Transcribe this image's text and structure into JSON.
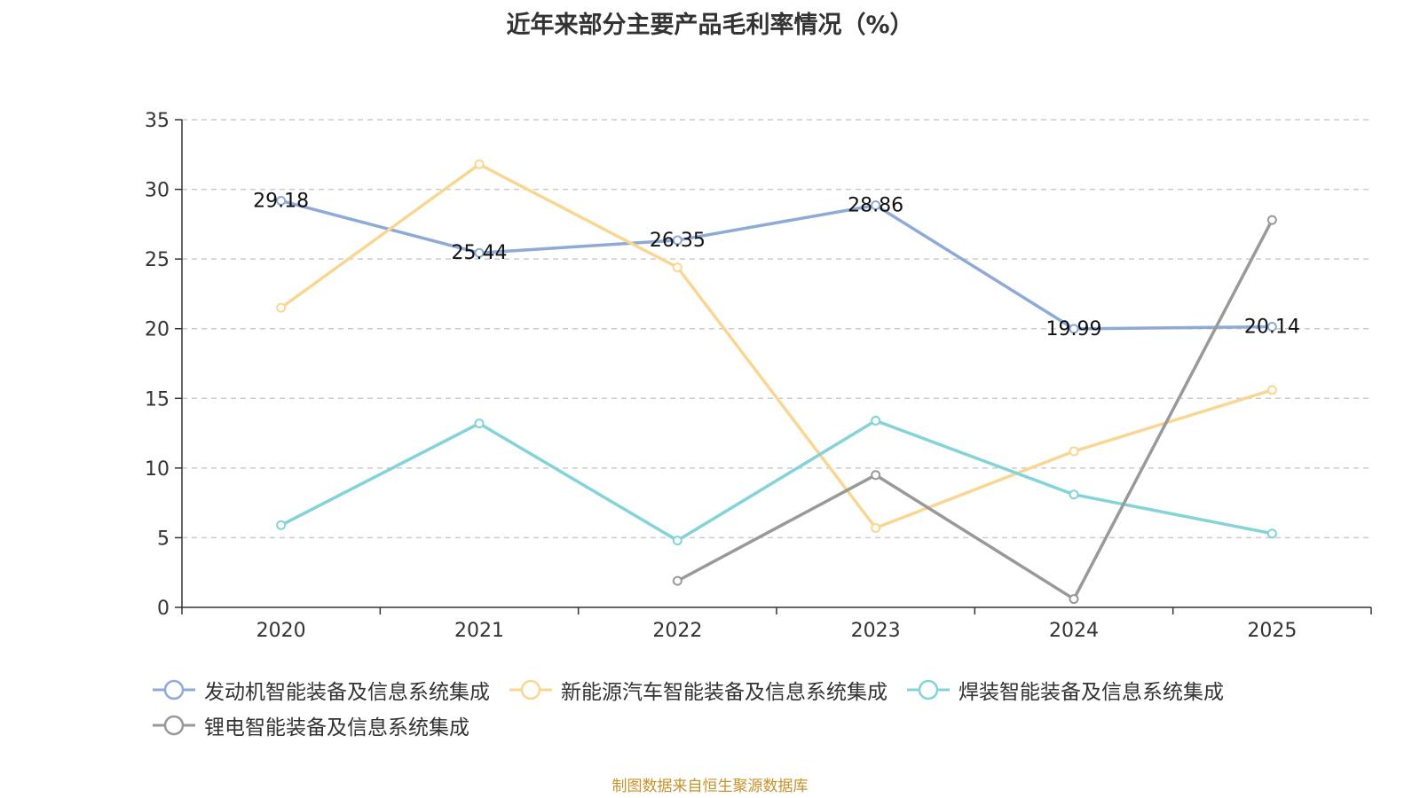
{
  "chart_data": {
    "type": "line",
    "title": "近年来部分主要产品毛利率情况（%）",
    "categories": [
      "2020",
      "2021",
      "2022",
      "2023",
      "2024",
      "2025"
    ],
    "ylim": [
      0,
      35
    ],
    "yticks": [
      0,
      5,
      10,
      15,
      20,
      25,
      30,
      35
    ],
    "grid": true,
    "legend_position": "bottom",
    "series": [
      {
        "name": "发动机智能装备及信息系统集成",
        "color": "#8eaad6",
        "values": [
          29.18,
          25.44,
          26.35,
          28.86,
          19.99,
          20.14
        ],
        "show_labels": true
      },
      {
        "name": "新能源汽车智能装备及信息系统集成",
        "color": "#f9d793",
        "values": [
          21.5,
          31.8,
          24.4,
          5.7,
          11.2,
          15.6
        ],
        "show_labels": false
      },
      {
        "name": "焊装智能装备及信息系统集成",
        "color": "#83d3d8",
        "values": [
          5.9,
          13.2,
          4.8,
          13.4,
          8.1,
          5.3
        ],
        "show_labels": false
      },
      {
        "name": "锂电智能装备及信息系统集成",
        "color": "#999999",
        "values": [
          null,
          null,
          1.9,
          9.5,
          0.6,
          27.8
        ],
        "show_labels": false
      }
    ],
    "data_labels": [
      "29.18",
      "25.44",
      "26.35",
      "28.86",
      "19.99",
      "20.14"
    ]
  },
  "source": "制图数据来自恒生聚源数据库"
}
